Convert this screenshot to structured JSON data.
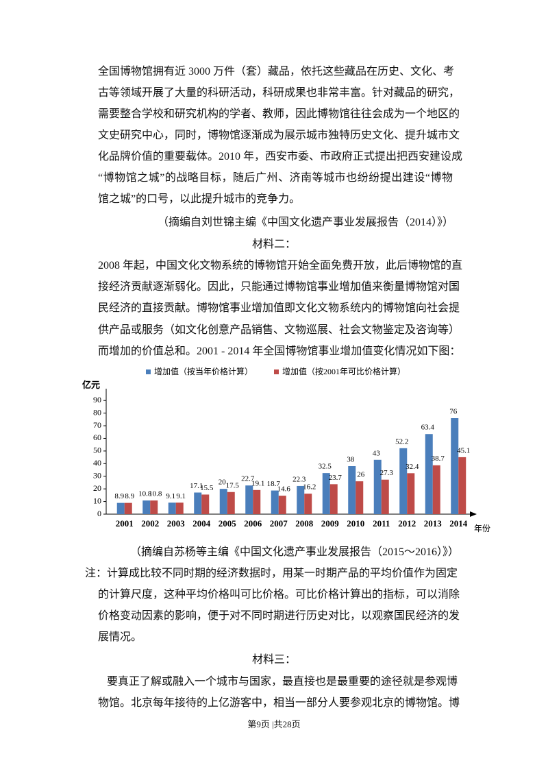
{
  "material1": {
    "lines": [
      "全国博物馆拥有近 3000 万件（套）藏品，依托这些藏品在历史、文化、考",
      "古等领域开展了大量的科研活动，科研成果也非常丰富。针对藏品的研究，",
      "需要整合学校和研究机构的学者、教师，因此博物馆往往会成为一个地区的",
      "文史研究中心，同时，博物馆逐渐成为展示城市独特历史文化、提升城市文",
      "化品牌价值的重要载体。2010 年，西安市委、市政府正式提出把西安建设成",
      "“博物馆之城”的战略目标，随后广州、济南等城市也纷纷提出建设“博物",
      "馆之城”的口号，以此提升城市的竞争力。"
    ],
    "source": "（摘编自刘世锦主编《中国文化遗产事业发展报告（2014）》）"
  },
  "material2": {
    "heading": "材料二：",
    "lines": [
      "2008 年起，中国文化文物系统的博物馆开始全面免费开放，此后博物馆的直",
      "接经济贡献逐渐弱化。因此，只能通过博物馆事业增加值来衡量博物馆对国",
      "民经济的直接贡献。博物馆事业增加值即文化文物系统内的博物馆向社会提",
      "供产品或服务（如文化创意产品销售、文物巡展、社会文物鉴定及咨询等）",
      "而增加的价值总和。2001 - 2014 年全国博物馆事业增加值变化情况如下图："
    ],
    "source": "（摘编自苏杨等主编《中国文化遗产事业发展报告（2015～2016）》）",
    "note": [
      "注：计算成比较不同时期的经济数据时，用某一时期产品的平均价值作为固定",
      "的计算尺度，这种平均价格叫可比价格。可比价格计算出的指标，可以消除",
      "价格变动因素的影响，便于对不同时期进行历史对比，以观察国民经济的发",
      "展情况。"
    ]
  },
  "chart_data": {
    "type": "bar",
    "y_label": "亿元",
    "x_label": "年份",
    "categories": [
      "2001",
      "2002",
      "2003",
      "2004",
      "2005",
      "2006",
      "2007",
      "2008",
      "2009",
      "2010",
      "2011",
      "2012",
      "2013",
      "2014"
    ],
    "series": [
      {
        "name": "增加值（按当年价格计算）",
        "color": "#4a7ebb",
        "values": [
          8.9,
          10.8,
          9.1,
          17.1,
          20,
          22.7,
          18.7,
          22.3,
          32.5,
          38,
          43,
          52.2,
          63.4,
          76
        ]
      },
      {
        "name": "增加值（按2001年可比价格计算）",
        "color": "#be4b48",
        "values": [
          8.9,
          10.8,
          9.1,
          15.5,
          17.5,
          19.1,
          14.6,
          16.2,
          23.7,
          26,
          27.3,
          32.4,
          38.7,
          45.1
        ]
      }
    ],
    "ylim": [
      0,
      95
    ],
    "yticks": [
      0,
      10,
      20,
      30,
      40,
      50,
      60,
      70,
      80,
      90
    ],
    "legend": "top",
    "grid": false
  },
  "material3": {
    "heading": "材料三：",
    "lines": [
      "要真正了解或融入一个城市与国家，最直接也是最重要的途径就是参观博",
      "物馆。北京每年接待的上亿游客中，相当一部分人要参观北京的博物馆。博"
    ]
  },
  "footer": "第9页 |共28页"
}
